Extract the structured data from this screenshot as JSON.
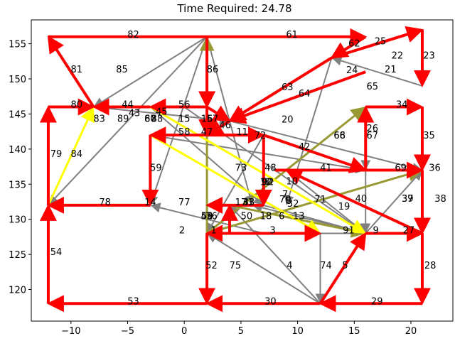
{
  "chart_data": {
    "type": "directed-graph",
    "title": "Time Required: 24.78",
    "xlim": [
      -13.5,
      23.7
    ],
    "ylim": [
      115.5,
      158.4
    ],
    "x_ticks": [
      -10,
      -5,
      0,
      5,
      10,
      15,
      20
    ],
    "y_ticks": [
      120,
      125,
      130,
      135,
      140,
      145,
      150,
      155
    ],
    "grid": false,
    "colors": {
      "red": "#ff0000",
      "gray": "#808080",
      "yellow": "#ffff00",
      "olive": "#999933"
    },
    "nodes": [
      {
        "id": "1",
        "x": 2.6,
        "y": 128.5
      },
      {
        "id": "2",
        "x": -0.2,
        "y": 128.5
      },
      {
        "id": "3",
        "x": 7.8,
        "y": 128.5
      },
      {
        "id": "4",
        "x": 9.3,
        "y": 123.5
      },
      {
        "id": "5",
        "x": 14.2,
        "y": 123.5
      },
      {
        "id": "6",
        "x": 8.6,
        "y": 130.5
      },
      {
        "id": "7",
        "x": 8.9,
        "y": 133.6
      },
      {
        "id": "8",
        "x": 9.2,
        "y": 132.7
      },
      {
        "id": "9",
        "x": 16.9,
        "y": 128.5
      },
      {
        "id": "10",
        "x": 9.5,
        "y": 135.5
      },
      {
        "id": "11",
        "x": 5.1,
        "y": 142.5
      },
      {
        "id": "12",
        "x": 7.2,
        "y": 135.4
      },
      {
        "id": "13",
        "x": 10.1,
        "y": 130.5
      },
      {
        "id": "14",
        "x": -3.0,
        "y": 132.5
      },
      {
        "id": "15",
        "x": 0.0,
        "y": 144.4
      },
      {
        "id": "16",
        "x": 2.0,
        "y": 144.4
      },
      {
        "id": "17",
        "x": 5.0,
        "y": 132.5
      },
      {
        "id": "18",
        "x": 7.2,
        "y": 130.5
      },
      {
        "id": "19",
        "x": 14.1,
        "y": 131.9
      },
      {
        "id": "20",
        "x": 9.1,
        "y": 144.3
      },
      {
        "id": "21",
        "x": 18.2,
        "y": 151.4
      },
      {
        "id": "22",
        "x": 18.8,
        "y": 153.4
      },
      {
        "id": "23",
        "x": 21.6,
        "y": 153.4
      },
      {
        "id": "24",
        "x": 14.8,
        "y": 151.3
      },
      {
        "id": "25",
        "x": 17.3,
        "y": 155.4
      },
      {
        "id": "26",
        "x": 16.6,
        "y": 143.0
      },
      {
        "id": "27",
        "x": 19.8,
        "y": 128.5
      },
      {
        "id": "28",
        "x": 21.7,
        "y": 123.5
      },
      {
        "id": "29",
        "x": 17.0,
        "y": 118.4
      },
      {
        "id": "30",
        "x": 7.6,
        "y": 118.4
      },
      {
        "id": "31",
        "x": 5.6,
        "y": 132.5
      },
      {
        "id": "32",
        "x": 9.6,
        "y": 132.3
      },
      {
        "id": "33",
        "x": 5.7,
        "y": 132.5
      },
      {
        "id": "34",
        "x": 19.2,
        "y": 146.4
      },
      {
        "id": "35",
        "x": 21.6,
        "y": 142.0
      },
      {
        "id": "36",
        "x": 22.1,
        "y": 137.4
      },
      {
        "id": "37",
        "x": 19.7,
        "y": 133.0
      },
      {
        "id": "38",
        "x": 22.6,
        "y": 133.0
      },
      {
        "id": "39",
        "x": 19.7,
        "y": 133.0
      },
      {
        "id": "40",
        "x": 15.6,
        "y": 133.0
      },
      {
        "id": "41",
        "x": 12.5,
        "y": 137.4
      },
      {
        "id": "42",
        "x": 10.6,
        "y": 140.4
      },
      {
        "id": "43",
        "x": -4.4,
        "y": 145.2
      },
      {
        "id": "44",
        "x": -5.0,
        "y": 146.4
      },
      {
        "id": "45",
        "x": -2.0,
        "y": 145.4
      },
      {
        "id": "46",
        "x": 3.6,
        "y": 143.5
      },
      {
        "id": "47",
        "x": 2.0,
        "y": 142.5
      },
      {
        "id": "48",
        "x": 7.6,
        "y": 137.4
      },
      {
        "id": "49",
        "x": 2.0,
        "y": 130.5
      },
      {
        "id": "50",
        "x": 5.5,
        "y": 130.5
      },
      {
        "id": "51",
        "x": 2.0,
        "y": 130.5
      },
      {
        "id": "52",
        "x": 2.4,
        "y": 123.5
      },
      {
        "id": "53",
        "x": -4.5,
        "y": 118.4
      },
      {
        "id": "54",
        "x": -11.3,
        "y": 125.4
      },
      {
        "id": "55",
        "x": 2.0,
        "y": 130.5
      },
      {
        "id": "56",
        "x": 0.0,
        "y": 146.4
      },
      {
        "id": "57",
        "x": 2.5,
        "y": 144.4
      },
      {
        "id": "58",
        "x": 0.0,
        "y": 142.5
      },
      {
        "id": "59",
        "x": -2.5,
        "y": 137.4
      },
      {
        "id": "60",
        "x": -3.0,
        "y": 144.4
      },
      {
        "id": "61",
        "x": 9.5,
        "y": 156.4
      },
      {
        "id": "62",
        "x": 15.0,
        "y": 155.1
      },
      {
        "id": "63",
        "x": 9.1,
        "y": 148.9
      },
      {
        "id": "64",
        "x": 10.6,
        "y": 148.0
      },
      {
        "id": "65",
        "x": 16.6,
        "y": 149.0
      },
      {
        "id": "66",
        "x": 13.7,
        "y": 142.0
      },
      {
        "id": "67",
        "x": 16.6,
        "y": 142.0
      },
      {
        "id": "68",
        "x": 13.7,
        "y": 142.0
      },
      {
        "id": "69",
        "x": 19.1,
        "y": 137.4
      },
      {
        "id": "70",
        "x": 8.9,
        "y": 132.9
      },
      {
        "id": "71",
        "x": 12.0,
        "y": 132.9
      },
      {
        "id": "72",
        "x": 6.7,
        "y": 142.0
      },
      {
        "id": "73",
        "x": 5.0,
        "y": 137.4
      },
      {
        "id": "74",
        "x": 12.5,
        "y": 123.5
      },
      {
        "id": "75",
        "x": 4.5,
        "y": 123.5
      },
      {
        "id": "76",
        "x": 2.4,
        "y": 130.5
      },
      {
        "id": "77",
        "x": 0.0,
        "y": 132.5
      },
      {
        "id": "78",
        "x": -7.0,
        "y": 132.5
      },
      {
        "id": "79",
        "x": -11.3,
        "y": 139.4
      },
      {
        "id": "80",
        "x": -9.5,
        "y": 146.4
      },
      {
        "id": "81",
        "x": -9.5,
        "y": 151.4
      },
      {
        "id": "82",
        "x": -4.5,
        "y": 156.4
      },
      {
        "id": "83",
        "x": -7.5,
        "y": 144.4
      },
      {
        "id": "84",
        "x": -9.5,
        "y": 139.4
      },
      {
        "id": "85",
        "x": -5.5,
        "y": 151.4
      },
      {
        "id": "86",
        "x": 2.5,
        "y": 151.4
      },
      {
        "id": "87",
        "x": -3.0,
        "y": 144.4
      },
      {
        "id": "88",
        "x": -2.4,
        "y": 144.4
      },
      {
        "id": "89",
        "x": -5.4,
        "y": 144.4
      },
      {
        "id": "90",
        "x": 7.3,
        "y": 135.4
      },
      {
        "id": "91",
        "x": 14.5,
        "y": 128.5
      },
      {
        "id": "92",
        "x": 7.4,
        "y": 135.4
      }
    ],
    "edges": [
      {
        "x1": -12,
        "y1": 156,
        "x2": 16,
        "y2": 156,
        "color": "red"
      },
      {
        "x1": 2,
        "y1": 156,
        "x2": 2,
        "y2": 146,
        "color": "red"
      },
      {
        "x1": -8,
        "y1": 146,
        "x2": -12,
        "y2": 156,
        "color": "red"
      },
      {
        "x1": -12,
        "y1": 146,
        "x2": -8,
        "y2": 146,
        "color": "red"
      },
      {
        "x1": -12,
        "y1": 132,
        "x2": -12,
        "y2": 146,
        "color": "red"
      },
      {
        "x1": -12,
        "y1": 118,
        "x2": -12,
        "y2": 132,
        "color": "red"
      },
      {
        "x1": 2,
        "y1": 118,
        "x2": -12,
        "y2": 118,
        "color": "red"
      },
      {
        "x1": 12,
        "y1": 118,
        "x2": 2,
        "y2": 118,
        "color": "red"
      },
      {
        "x1": 21,
        "y1": 118,
        "x2": 12,
        "y2": 118,
        "color": "red"
      },
      {
        "x1": 21,
        "y1": 128,
        "x2": 21,
        "y2": 118,
        "color": "red"
      },
      {
        "x1": 16,
        "y1": 128,
        "x2": 21,
        "y2": 128,
        "color": "red"
      },
      {
        "x1": 12,
        "y1": 118,
        "x2": 16,
        "y2": 128,
        "color": "red"
      },
      {
        "x1": 2,
        "y1": 128,
        "x2": 12,
        "y2": 128,
        "color": "red"
      },
      {
        "x1": 2,
        "y1": 128,
        "x2": 2,
        "y2": 118,
        "color": "red"
      },
      {
        "x1": -3,
        "y1": 132,
        "x2": -12,
        "y2": 132,
        "color": "red"
      },
      {
        "x1": -3,
        "y1": 142,
        "x2": -3,
        "y2": 132,
        "color": "red"
      },
      {
        "x1": 7,
        "y1": 142,
        "x2": -3,
        "y2": 142,
        "color": "red"
      },
      {
        "x1": 7,
        "y1": 142,
        "x2": 16,
        "y2": 137,
        "color": "red"
      },
      {
        "x1": 16,
        "y1": 137,
        "x2": 16,
        "y2": 146,
        "color": "red"
      },
      {
        "x1": 16,
        "y1": 146,
        "x2": 21,
        "y2": 146,
        "color": "red"
      },
      {
        "x1": 21,
        "y1": 146,
        "x2": 21,
        "y2": 137,
        "color": "red"
      },
      {
        "x1": 16,
        "y1": 151,
        "x2": 4,
        "y2": 144,
        "color": "red"
      },
      {
        "x1": 13,
        "y1": 153,
        "x2": 4,
        "y2": 144,
        "color": "red"
      },
      {
        "x1": 16,
        "y1": 156,
        "x2": 13,
        "y2": 153,
        "color": "red"
      },
      {
        "x1": 13,
        "y1": 153,
        "x2": 21,
        "y2": 157,
        "color": "red"
      },
      {
        "x1": 21,
        "y1": 157,
        "x2": 21,
        "y2": 149,
        "color": "red"
      },
      {
        "x1": 8,
        "y1": 137,
        "x2": 21,
        "y2": 137,
        "color": "red"
      },
      {
        "x1": 21,
        "y1": 137,
        "x2": 21,
        "y2": 128,
        "color": "red"
      },
      {
        "x1": 21,
        "y1": 128,
        "x2": 9,
        "y2": 137,
        "color": "red"
      },
      {
        "x1": 7,
        "y1": 132,
        "x2": 2,
        "y2": 132,
        "color": "red"
      },
      {
        "x1": 7,
        "y1": 142,
        "x2": 7,
        "y2": 132,
        "color": "red"
      },
      {
        "x1": -3,
        "y1": 146,
        "x2": -8,
        "y2": 146,
        "color": "red"
      },
      {
        "x1": 2,
        "y1": 146,
        "x2": -3,
        "y2": 146,
        "color": "red"
      },
      {
        "x1": 2,
        "y1": 146,
        "x2": 2,
        "y2": 142,
        "color": "red"
      },
      {
        "x1": 2,
        "y1": 142,
        "x2": 7,
        "y2": 142,
        "color": "red"
      },
      {
        "x1": 4,
        "y1": 144,
        "x2": 2,
        "y2": 142,
        "color": "red"
      },
      {
        "x1": 3,
        "y1": 128,
        "x2": 2,
        "y2": 128,
        "color": "red"
      },
      {
        "x1": 4,
        "y1": 128,
        "x2": 4,
        "y2": 132,
        "color": "red"
      },
      {
        "x1": 2,
        "y1": 146,
        "x2": 4,
        "y2": 144,
        "color": "red"
      },
      {
        "x1": 2,
        "y1": 156,
        "x2": -12,
        "y2": 132,
        "color": "gray"
      },
      {
        "x1": 2,
        "y1": 156,
        "x2": -8,
        "y2": 146,
        "color": "gray"
      },
      {
        "x1": 2,
        "y1": 156,
        "x2": -3,
        "y2": 132,
        "color": "gray"
      },
      {
        "x1": 2,
        "y1": 156,
        "x2": 6,
        "y2": 132,
        "color": "gray"
      },
      {
        "x1": -8,
        "y1": 146,
        "x2": 4,
        "y2": 144,
        "color": "gray"
      },
      {
        "x1": -3,
        "y1": 146,
        "x2": 7,
        "y2": 132,
        "color": "gray"
      },
      {
        "x1": 4,
        "y1": 144,
        "x2": 21,
        "y2": 137,
        "color": "gray"
      },
      {
        "x1": 0,
        "y1": 146,
        "x2": 16,
        "y2": 128,
        "color": "gray"
      },
      {
        "x1": 12,
        "y1": 118,
        "x2": 2,
        "y2": 128,
        "color": "gray"
      },
      {
        "x1": 12,
        "y1": 118,
        "x2": 4,
        "y2": 132,
        "color": "gray"
      },
      {
        "x1": 12,
        "y1": 128,
        "x2": 12,
        "y2": 118,
        "color": "gray"
      },
      {
        "x1": 16,
        "y1": 128,
        "x2": 2,
        "y2": 128,
        "color": "gray"
      },
      {
        "x1": 16,
        "y1": 128,
        "x2": 21,
        "y2": 137,
        "color": "gray"
      },
      {
        "x1": 16,
        "y1": 128,
        "x2": 6,
        "y2": 132,
        "color": "gray"
      },
      {
        "x1": 16,
        "y1": 146,
        "x2": 16,
        "y2": 137,
        "color": "gray"
      },
      {
        "x1": 16,
        "y1": 146,
        "x2": 16,
        "y2": 128,
        "color": "gray"
      },
      {
        "x1": 21,
        "y1": 137,
        "x2": 21,
        "y2": 128,
        "color": "gray"
      },
      {
        "x1": 21,
        "y1": 149,
        "x2": 13,
        "y2": 153,
        "color": "gray"
      },
      {
        "x1": 13,
        "y1": 153,
        "x2": 9,
        "y2": 132,
        "color": "gray"
      },
      {
        "x1": 9,
        "y1": 137,
        "x2": 16,
        "y2": 128,
        "color": "gray"
      },
      {
        "x1": 7,
        "y1": 142,
        "x2": 2,
        "y2": 128,
        "color": "gray"
      },
      {
        "x1": 7,
        "y1": 128,
        "x2": -3,
        "y2": 132,
        "color": "gray"
      },
      {
        "x1": -3,
        "y1": 142,
        "x2": 16,
        "y2": 137,
        "color": "gray"
      },
      {
        "x1": 7,
        "y1": 132,
        "x2": 16,
        "y2": 128,
        "color": "gray"
      },
      {
        "x1": -12,
        "y1": 132,
        "x2": -8,
        "y2": 146,
        "color": "yellow"
      },
      {
        "x1": -3,
        "y1": 142,
        "x2": 12,
        "y2": 128,
        "color": "yellow"
      },
      {
        "x1": -3,
        "y1": 146,
        "x2": 16,
        "y2": 128,
        "color": "yellow"
      },
      {
        "x1": 2,
        "y1": 118,
        "x2": 2,
        "y2": 156,
        "color": "olive"
      },
      {
        "x1": 2,
        "y1": 128,
        "x2": 16,
        "y2": 146,
        "color": "olive"
      },
      {
        "x1": 2,
        "y1": 128,
        "x2": 21,
        "y2": 137,
        "color": "olive"
      },
      {
        "x1": 4,
        "y1": 132,
        "x2": 16,
        "y2": 128,
        "color": "olive"
      }
    ]
  }
}
